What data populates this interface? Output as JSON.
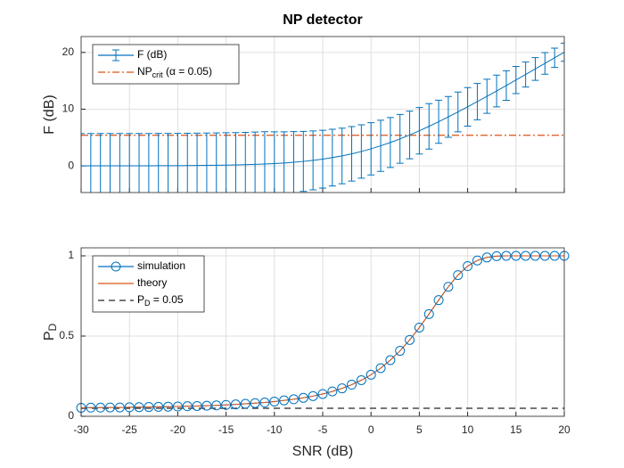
{
  "chart_data": [
    {
      "type": "errorbar",
      "title": "NP detector",
      "ylabel": "F (dB)",
      "x": [
        -30,
        -29,
        -28,
        -27,
        -26,
        -25,
        -24,
        -23,
        -22,
        -21,
        -20,
        -19,
        -18,
        -17,
        -16,
        -15,
        -14,
        -13,
        -12,
        -11,
        -10,
        -9,
        -8,
        -7,
        -6,
        -5,
        -4,
        -3,
        -2,
        -1,
        0,
        1,
        2,
        3,
        4,
        5,
        6,
        7,
        8,
        9,
        10,
        11,
        12,
        13,
        14,
        15,
        16,
        17,
        18,
        19,
        20
      ],
      "series": [
        {
          "name": [
            "F (dB)"
          ],
          "color": "#0072bd",
          "values": [
            0.0,
            0.01,
            0.01,
            0.01,
            0.01,
            0.01,
            0.02,
            0.02,
            0.03,
            0.03,
            0.04,
            0.05,
            0.07,
            0.09,
            0.11,
            0.14,
            0.17,
            0.21,
            0.27,
            0.33,
            0.41,
            0.51,
            0.64,
            0.79,
            0.97,
            1.19,
            1.46,
            1.76,
            2.12,
            2.54,
            3.01,
            3.54,
            4.12,
            4.76,
            5.45,
            6.19,
            6.97,
            7.79,
            8.64,
            9.51,
            10.41,
            11.33,
            12.27,
            13.21,
            14.17,
            15.14,
            16.11,
            17.09,
            18.07,
            19.05,
            20.04
          ],
          "errors": [
            5.7,
            5.7,
            5.7,
            5.7,
            5.7,
            5.7,
            5.7,
            5.7,
            5.7,
            5.7,
            5.7,
            5.7,
            5.7,
            5.7,
            5.7,
            5.7,
            5.7,
            5.7,
            5.7,
            5.7,
            5.6,
            5.5,
            5.4,
            5.3,
            5.2,
            5.1,
            5.0,
            4.9,
            4.8,
            4.7,
            4.6,
            4.5,
            4.4,
            4.3,
            4.2,
            4.1,
            4.0,
            3.8,
            3.6,
            3.5,
            3.4,
            3.2,
            3.0,
            2.8,
            2.6,
            2.4,
            2.2,
            2.0,
            1.9,
            1.7,
            1.6
          ]
        }
      ],
      "hline": {
        "name": [
          "NP",
          "crit",
          " (α = 0.05)"
        ],
        "value": 5.4,
        "color": "#d95319",
        "style": "dashdot"
      },
      "xlim": [
        -30,
        20
      ],
      "xticks": [
        -30,
        -25,
        -20,
        -15,
        -10,
        -5,
        0,
        5,
        10,
        15,
        20
      ],
      "show_xtick_labels": false,
      "ylim": [
        -4.7,
        22.8
      ],
      "yticks": [
        0,
        10,
        20
      ],
      "grid": true,
      "legend": "upper left"
    },
    {
      "type": "line",
      "xlabel": "SNR (dB)",
      "ylabel": [
        "P",
        "D"
      ],
      "x": [
        -30,
        -29,
        -28,
        -27,
        -26,
        -25,
        -24,
        -23,
        -22,
        -21,
        -20,
        -19,
        -18,
        -17,
        -16,
        -15,
        -14,
        -13,
        -12,
        -11,
        -10,
        -9,
        -8,
        -7,
        -6,
        -5,
        -4,
        -3,
        -2,
        -1,
        0,
        1,
        2,
        3,
        4,
        5,
        6,
        7,
        8,
        9,
        10,
        11,
        12,
        13,
        14,
        15,
        16,
        17,
        18,
        19,
        20
      ],
      "series": [
        {
          "name": [
            "simulation"
          ],
          "color": "#0072bd",
          "marker": "o",
          "values": [
            0.053,
            0.054,
            0.054,
            0.055,
            0.055,
            0.056,
            0.057,
            0.058,
            0.059,
            0.06,
            0.061,
            0.063,
            0.064,
            0.066,
            0.068,
            0.071,
            0.074,
            0.078,
            0.082,
            0.086,
            0.092,
            0.099,
            0.106,
            0.115,
            0.126,
            0.139,
            0.155,
            0.174,
            0.197,
            0.225,
            0.259,
            0.3,
            0.35,
            0.408,
            0.476,
            0.553,
            0.637,
            0.724,
            0.807,
            0.88,
            0.936,
            0.971,
            0.99,
            0.998,
            1.0,
            1.0,
            1.0,
            1.0,
            1.0,
            1.0,
            1.0
          ]
        },
        {
          "name": [
            "theory"
          ],
          "color": "#d95319",
          "values": [
            0.053,
            0.054,
            0.054,
            0.055,
            0.055,
            0.056,
            0.057,
            0.058,
            0.059,
            0.06,
            0.061,
            0.063,
            0.064,
            0.066,
            0.068,
            0.071,
            0.074,
            0.078,
            0.082,
            0.086,
            0.092,
            0.099,
            0.106,
            0.115,
            0.126,
            0.139,
            0.155,
            0.174,
            0.197,
            0.225,
            0.259,
            0.3,
            0.35,
            0.408,
            0.476,
            0.553,
            0.637,
            0.724,
            0.807,
            0.88,
            0.936,
            0.971,
            0.99,
            0.998,
            1.0,
            1.0,
            1.0,
            1.0,
            1.0,
            1.0,
            1.0
          ]
        }
      ],
      "hline": {
        "name": [
          "P",
          "D",
          " = 0.05"
        ],
        "value": 0.05,
        "color": "#262626",
        "style": "dashed"
      },
      "xlim": [
        -30,
        20
      ],
      "xticks": [
        -30,
        -25,
        -20,
        -15,
        -10,
        -5,
        0,
        5,
        10,
        15,
        20
      ],
      "show_xtick_labels": true,
      "ylim": [
        0,
        1.05
      ],
      "yticks": [
        0,
        0.5,
        1
      ],
      "grid": true,
      "legend": "upper left"
    }
  ]
}
